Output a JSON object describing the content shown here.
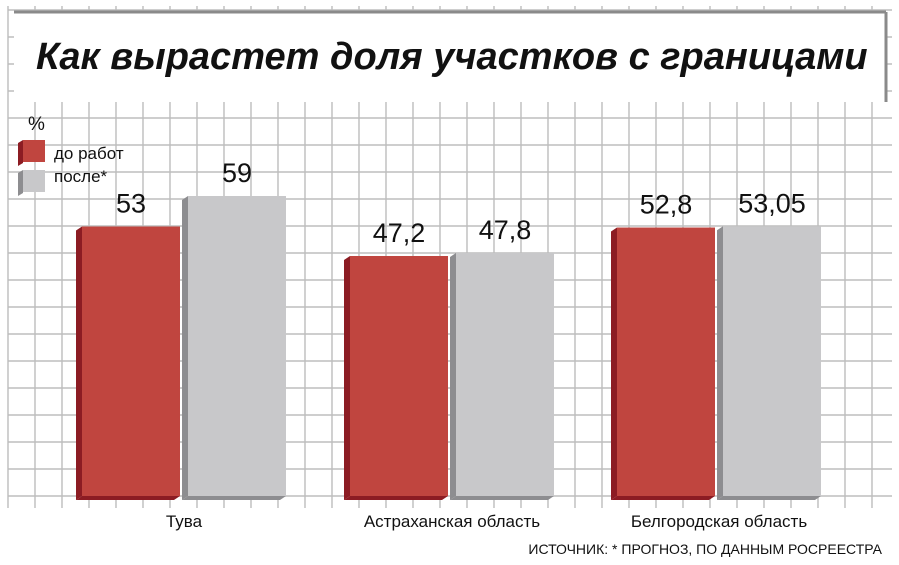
{
  "chart_data": {
    "type": "bar",
    "title": "Как вырастет доля участков с границами",
    "unit_label": "%",
    "categories": [
      "Тува",
      "Астраханская область",
      "Белгородская область"
    ],
    "series": [
      {
        "name": "до работ",
        "values": [
          53,
          47.2,
          52.8
        ],
        "labels": [
          "53",
          "47,2",
          "52,8"
        ]
      },
      {
        "name": "после*",
        "values": [
          59,
          47.8,
          53.05
        ],
        "labels": [
          "59",
          "47,8",
          "53,05"
        ]
      }
    ],
    "legend_position": "top-left",
    "grid": true,
    "ylim": [
      0,
      60
    ],
    "source": "ИСТОЧНИК: * ПРОГНОЗ, ПО ДАННЫМ РОСРЕЕСТРА"
  },
  "colors": {
    "series_before": "#c0453f",
    "series_before_side": "#8c1c23",
    "series_after": "#c8c8ca",
    "series_after_side": "#8d8d90",
    "grid": "#bdbdbd",
    "title_box_border": "#8a8a8a",
    "text": "#111111"
  }
}
